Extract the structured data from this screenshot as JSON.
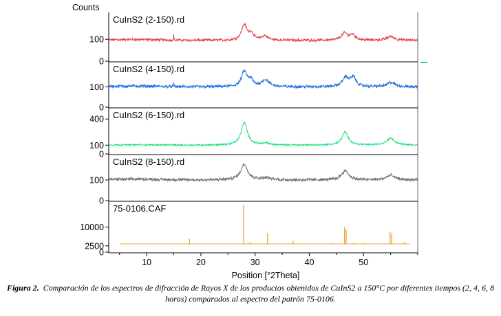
{
  "chart_data": {
    "type": "line",
    "ylabel": "Counts",
    "xlabel": "Position [°2Theta]",
    "xlim": [
      3,
      60
    ],
    "xticks": [
      10,
      20,
      30,
      40,
      50
    ],
    "grid": false,
    "panels": [
      {
        "name": "CuInS2 (2-150).rd",
        "color": "#e8474d",
        "ylim": [
          0,
          220
        ],
        "yticks": [
          0,
          100
        ],
        "base": 95,
        "noise": 5,
        "peaks": [
          [
            15.0,
            25,
            0.04
          ],
          [
            28.0,
            70,
            0.6
          ],
          [
            29.3,
            30,
            0.5
          ],
          [
            31.8,
            20,
            0.7
          ],
          [
            46.5,
            32,
            0.7
          ],
          [
            48.0,
            24,
            0.6
          ],
          [
            55.0,
            18,
            0.8
          ]
        ]
      },
      {
        "name": "CuInS2 (4-150).rd",
        "color": "#2070e0",
        "ylim": [
          0,
          220
        ],
        "yticks": [
          0,
          100
        ],
        "base": 100,
        "noise": 6,
        "peaks": [
          [
            15.0,
            14,
            0.04
          ],
          [
            28.0,
            75,
            0.6
          ],
          [
            29.2,
            30,
            0.5
          ],
          [
            31.9,
            35,
            0.8
          ],
          [
            46.7,
            45,
            0.7
          ],
          [
            48.1,
            45,
            0.6
          ],
          [
            55.1,
            22,
            0.8
          ]
        ]
      },
      {
        "name": "CuInS2 (6-150).rd",
        "color": "#17e07a",
        "ylim": [
          0,
          520
        ],
        "yticks": [
          0,
          100,
          400
        ],
        "base": 100,
        "noise": 7,
        "peaks": [
          [
            28.0,
            260,
            0.7
          ],
          [
            32.0,
            20,
            0.8
          ],
          [
            46.6,
            150,
            0.7
          ],
          [
            55.0,
            80,
            0.9
          ]
        ]
      },
      {
        "name": "CuInS2 (8-150).rd",
        "color": "#707070",
        "ylim": [
          0,
          220
        ],
        "yticks": [
          0,
          100
        ],
        "base": 100,
        "noise": 6,
        "peaks": [
          [
            28.0,
            75,
            0.8
          ],
          [
            32.0,
            10,
            0.9
          ],
          [
            46.6,
            45,
            0.8
          ],
          [
            55.0,
            22,
            0.9
          ]
        ]
      },
      {
        "name": "75-0106.CAF",
        "color": "#f0a030",
        "ylim": [
          0,
          20000
        ],
        "yticks": [
          0,
          2500,
          10000
        ],
        "sticks": [
          [
            17.9,
            2400
          ],
          [
            27.9,
            19000
          ],
          [
            29.1,
            900
          ],
          [
            32.3,
            5200
          ],
          [
            37.0,
            1500
          ],
          [
            44.2,
            500
          ],
          [
            46.5,
            8000
          ],
          [
            46.8,
            6800
          ],
          [
            48.2,
            500
          ],
          [
            50.2,
            400
          ],
          [
            54.9,
            6000
          ],
          [
            55.2,
            5000
          ],
          [
            57.6,
            900
          ]
        ]
      }
    ]
  },
  "caption": {
    "label": "Figura 2.",
    "text": "Comparación de los espectros de difracción de Rayos X de los productos obtenidos de CuInS2 a 150°C por diferentes tiempos (2, 4, 6, 8 horas) comparados al espectro del patrón 75-0106."
  }
}
